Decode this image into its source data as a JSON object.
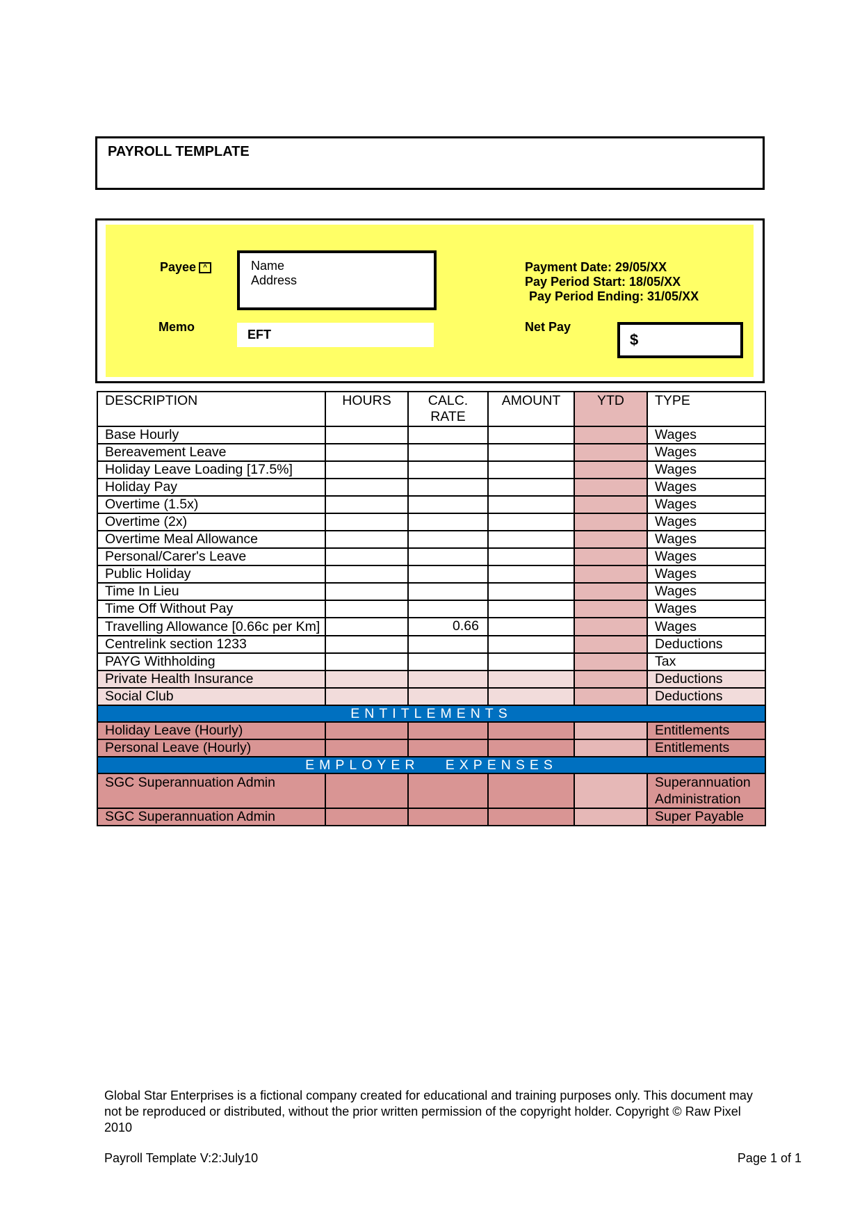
{
  "title": "PAYROLL TEMPLATE",
  "payee": {
    "label": "Payee",
    "name": "Name",
    "address": "Address"
  },
  "memo": {
    "label": "Memo",
    "value": "EFT"
  },
  "dates": {
    "payment_date": "Payment Date:  29/05/XX",
    "period_start": "Pay Period Start:  18/05/XX",
    "period_end": "Pay Period Ending: 31/05/XX"
  },
  "net_pay": {
    "label": "Net Pay",
    "value": "$"
  },
  "table": {
    "headers": [
      "DESCRIPTION",
      "HOURS",
      "CALC. RATE",
      "AMOUNT",
      "YTD",
      "TYPE"
    ],
    "rows": [
      {
        "desc": "Base Hourly",
        "rate": "",
        "type": "Wages",
        "style": "white"
      },
      {
        "desc": "Bereavement Leave",
        "rate": "",
        "type": "Wages",
        "style": "white"
      },
      {
        "desc": "Holiday Leave Loading [17.5%]",
        "rate": "",
        "type": "Wages",
        "style": "white"
      },
      {
        "desc": "Holiday Pay",
        "rate": "",
        "type": "Wages",
        "style": "white"
      },
      {
        "desc": "Overtime (1.5x)",
        "rate": "",
        "type": "Wages",
        "style": "white"
      },
      {
        "desc": "Overtime (2x)",
        "rate": "",
        "type": "Wages",
        "style": "white"
      },
      {
        "desc": "Overtime Meal Allowance",
        "rate": "",
        "type": "Wages",
        "style": "white"
      },
      {
        "desc": "Personal/Carer's Leave",
        "rate": "",
        "type": "Wages",
        "style": "white"
      },
      {
        "desc": "Public Holiday",
        "rate": "",
        "type": "Wages",
        "style": "white"
      },
      {
        "desc": "Time In Lieu",
        "rate": "",
        "type": "Wages",
        "style": "white"
      },
      {
        "desc": "Time Off Without Pay",
        "rate": "",
        "type": "Wages",
        "style": "white"
      },
      {
        "desc": "Travelling Allowance [0.66c per Km]",
        "rate": "0.66",
        "type": "Wages",
        "style": "white"
      },
      {
        "desc": "Centrelink section 1233",
        "rate": "",
        "type": "Deductions",
        "style": "white"
      },
      {
        "desc": "PAYG Withholding",
        "rate": "",
        "type": "Tax",
        "style": "white"
      },
      {
        "desc": "Private Health Insurance",
        "rate": "",
        "type": "Deductions",
        "style": "pink"
      },
      {
        "desc": "Social Club",
        "rate": "",
        "type": "Deductions",
        "style": "pink"
      }
    ],
    "entitlements_label": "ENTITLEMENTS",
    "entitlement_rows": [
      {
        "desc": "Holiday Leave (Hourly)",
        "type": "Entitlements"
      },
      {
        "desc": "Personal Leave (Hourly)",
        "type": "Entitlements"
      }
    ],
    "employer_label": "EMPLOYER   EXPENSES",
    "employer_rows": [
      {
        "desc": "SGC Superannuation Admin",
        "type": "Superannuation Administration"
      },
      {
        "desc": "SGC Superannuation Admin",
        "type": "Super Payable"
      }
    ]
  },
  "footer": {
    "disclaimer": "Global Star Enterprises is a fictional company created for educational and training purposes only. This document may not be reproduced or distributed, without the prior written permission of the copyright holder. Copyright © Raw Pixel 2010",
    "version": "Payroll Template  V:2:July10",
    "page": "Page 1 of 1"
  },
  "colors": {
    "yellow": "#ffff66",
    "ytd": "#e6b8b7",
    "pink": "#f2dcdb",
    "red": "#d99594",
    "band": "#0070c0"
  }
}
